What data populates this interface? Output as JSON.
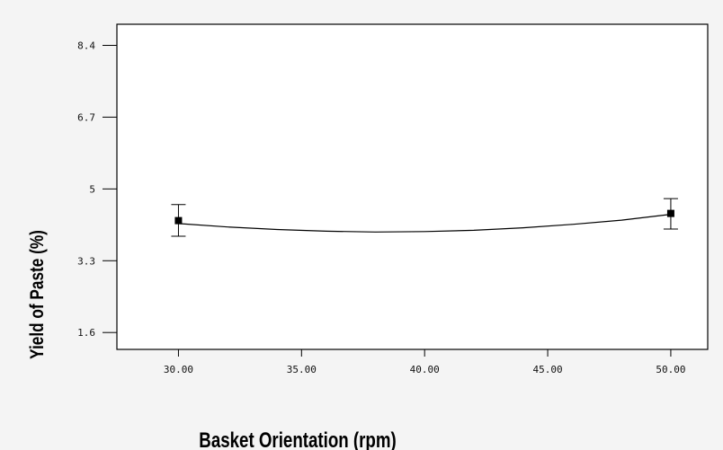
{
  "chart_data": {
    "type": "line",
    "title": "",
    "xlabel": "Basket Orientation (rpm)",
    "ylabel": "Yield of Paste (%)",
    "xlim": [
      27.5,
      51.5
    ],
    "ylim": [
      1.2,
      8.9
    ],
    "x_ticks": [
      30,
      35,
      40,
      45,
      50
    ],
    "x_tick_labels": [
      "30.00",
      "35.00",
      "40.00",
      "45.00",
      "50.00"
    ],
    "y_ticks": [
      1.6,
      3.3,
      5,
      6.7,
      8.4
    ],
    "y_tick_labels": [
      "1.6",
      "3.3",
      "5",
      "6.7",
      "8.4"
    ],
    "grid": false,
    "series": [
      {
        "kind": "fitted-curve",
        "x": [
          30,
          32,
          34,
          36,
          38,
          40,
          42,
          44,
          46,
          48,
          50
        ],
        "y": [
          4.18,
          4.1,
          4.04,
          4.0,
          3.98,
          3.99,
          4.02,
          4.08,
          4.16,
          4.26,
          4.4
        ]
      },
      {
        "kind": "design-points",
        "x": [
          30,
          50
        ],
        "y": [
          4.25,
          4.42
        ],
        "err_low": [
          3.88,
          4.05
        ],
        "err_high": [
          4.63,
          4.77
        ]
      }
    ],
    "colors": {
      "line": "#000000",
      "marker": "#000000",
      "axes": "#000000"
    }
  }
}
